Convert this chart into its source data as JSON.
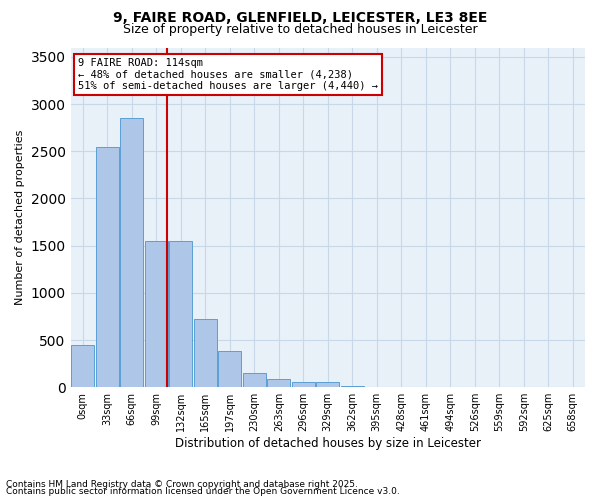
{
  "title_line1": "9, FAIRE ROAD, GLENFIELD, LEICESTER, LE3 8EE",
  "title_line2": "Size of property relative to detached houses in Leicester",
  "xlabel": "Distribution of detached houses by size in Leicester",
  "ylabel": "Number of detached properties",
  "annotation_title": "9 FAIRE ROAD: 114sqm",
  "annotation_line2": "← 48% of detached houses are smaller (4,238)",
  "annotation_line3": "51% of semi-detached houses are larger (4,440) →",
  "property_size_sqm": 114,
  "bin_labels": [
    "0sqm",
    "33sqm",
    "66sqm",
    "99sqm",
    "132sqm",
    "165sqm",
    "197sqm",
    "230sqm",
    "263sqm",
    "296sqm",
    "329sqm",
    "362sqm",
    "395sqm",
    "428sqm",
    "461sqm",
    "494sqm",
    "526sqm",
    "559sqm",
    "592sqm",
    "625sqm",
    "658sqm"
  ],
  "counts": [
    450,
    2550,
    2850,
    1550,
    1550,
    720,
    380,
    150,
    90,
    50,
    50,
    10,
    5,
    5,
    2,
    2,
    0,
    0,
    0,
    0,
    0
  ],
  "bar_color": "#aec6e8",
  "bar_edge_color": "#5a9fd4",
  "vline_color": "#cc0000",
  "annotation_box_edge": "#cc0000",
  "grid_color": "#c8d8e8",
  "background_color": "#e8f0f8",
  "ylim": [
    0,
    3600
  ],
  "yticks": [
    0,
    500,
    1000,
    1500,
    2000,
    2500,
    3000,
    3500
  ],
  "footnote1": "Contains HM Land Registry data © Crown copyright and database right 2025.",
  "footnote2": "Contains public sector information licensed under the Open Government Licence v3.0."
}
